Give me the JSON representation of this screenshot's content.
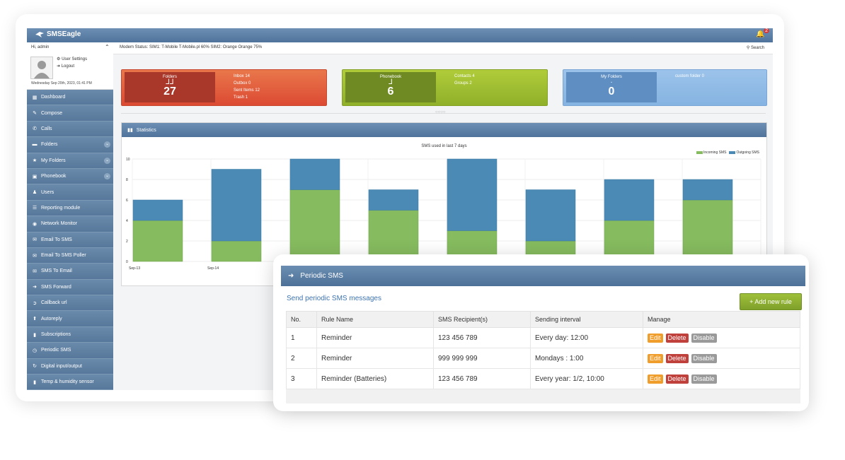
{
  "app": {
    "logo": "SMSEagle",
    "notification_count": "2",
    "greeting": "Hi, admin",
    "modem_status": "Modem Status:  SIM1: T-Mobile T-Mobile.pl 60%     SIM2: Orange Orange 75%",
    "search_label": "Search",
    "user_settings": "User Settings",
    "logout": "Logout",
    "date": "Wednesday Sep 20th, 2023, 01:41 PM"
  },
  "sidebar": {
    "items": [
      {
        "label": "Dashboard",
        "icon": "grid-icon"
      },
      {
        "label": "Compose",
        "icon": "pencil-icon"
      },
      {
        "label": "Calls",
        "icon": "phone-icon"
      },
      {
        "label": "Folders",
        "icon": "folder-icon",
        "expand": true
      },
      {
        "label": "My Folders",
        "icon": "star-icon",
        "expand": true
      },
      {
        "label": "Phonebook",
        "icon": "calendar-icon",
        "expand": true
      },
      {
        "label": "Users",
        "icon": "users-icon"
      },
      {
        "label": "Reporting module",
        "icon": "list-icon"
      },
      {
        "label": "Network Monitor",
        "icon": "gauge-icon"
      },
      {
        "label": "Email To SMS",
        "icon": "envelope-icon"
      },
      {
        "label": "Email To SMS Poller",
        "icon": "envelope-icon"
      },
      {
        "label": "SMS To Email",
        "icon": "envelope-icon"
      },
      {
        "label": "SMS Forward",
        "icon": "arrow-right-icon"
      },
      {
        "label": "Callback url",
        "icon": "circle-arrow-icon"
      },
      {
        "label": "Autoreply",
        "icon": "arrow-up-icon"
      },
      {
        "label": "Subscriptions",
        "icon": "bookmark-icon"
      },
      {
        "label": "Periodic SMS",
        "icon": "clock-icon"
      },
      {
        "label": "Digital input/output",
        "icon": "refresh-icon"
      },
      {
        "label": "Temp & humidity sensor",
        "icon": "bars-icon"
      }
    ]
  },
  "tiles": {
    "folders": {
      "label": "Folders",
      "count": "27",
      "lines": [
        "Inbox 14",
        "Outbox 0",
        "Sent Items 12",
        "Trash 1"
      ],
      "color": "#dc4a33"
    },
    "phonebook": {
      "label": "Phonebook",
      "count": "6",
      "lines": [
        "Contacts 4",
        "Groups 2"
      ],
      "color": "#90b02a"
    },
    "my_folders": {
      "label": "My Folders",
      "count": "0",
      "lines": [
        "custom folder 0"
      ],
      "color": "#85b3e2"
    }
  },
  "statistics": {
    "header": "Statistics",
    "legend_incoming": "Incoming SMS",
    "legend_outgoing": "Outgoing SMS"
  },
  "chart_data": {
    "type": "bar",
    "title": "SMS used in last 7 days",
    "stacked": true,
    "categories": [
      "Sep-13",
      "Sep-14",
      "",
      "",
      "",
      "",
      "",
      ""
    ],
    "series": [
      {
        "name": "Incoming SMS",
        "color": "#86bb5f",
        "values": [
          4,
          2,
          7,
          5,
          3,
          2,
          4,
          6
        ]
      },
      {
        "name": "Outgoing SMS",
        "color": "#4a8ab4",
        "values": [
          2,
          7,
          3,
          2,
          7,
          5,
          4,
          2
        ]
      }
    ],
    "ylim": [
      0,
      10
    ],
    "yticks": [
      0,
      2,
      4,
      6,
      8,
      10
    ],
    "grid": true,
    "legend": "top-right"
  },
  "periodic": {
    "title": "Periodic SMS",
    "subtitle": "Send periodic SMS messages",
    "add_button": "+ Add new rule",
    "columns": [
      "No.",
      "Rule Name",
      "SMS Recipient(s)",
      "Sending interval",
      "Manage"
    ],
    "rows": [
      {
        "no": "1",
        "name": "Reminder",
        "recipients": "123 456 789",
        "interval": "Every day: 12:00"
      },
      {
        "no": "2",
        "name": "Reminder",
        "recipients": "999 999 999",
        "interval": "Mondays : 1:00"
      },
      {
        "no": "3",
        "name": "Reminder (Batteries)",
        "recipients": "123 456 789",
        "interval": "Every year: 1/2, 10:00"
      }
    ],
    "actions": {
      "edit": "Edit",
      "delete": "Delete",
      "disable": "Disable"
    }
  }
}
